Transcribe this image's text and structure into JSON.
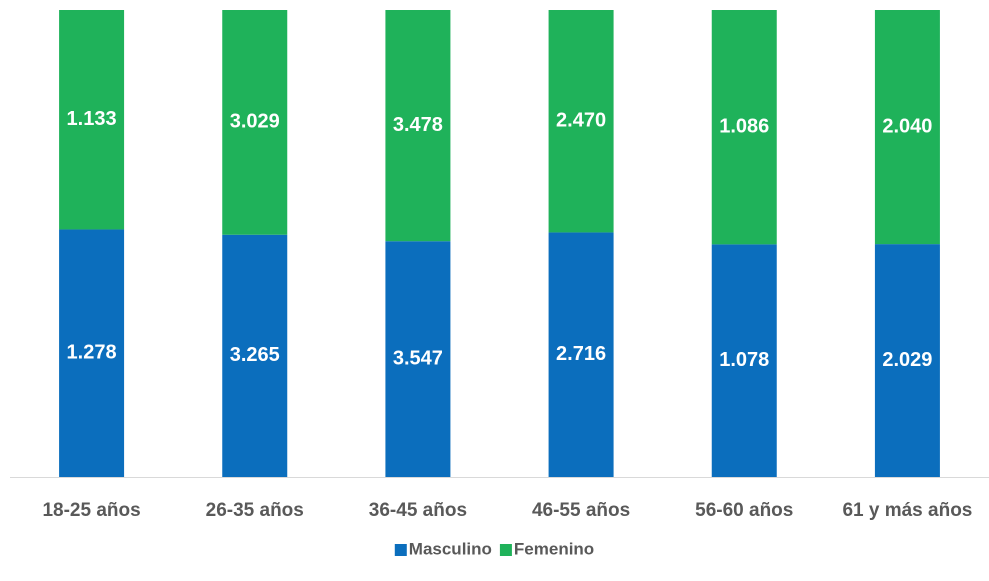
{
  "chart_data": {
    "type": "bar",
    "stacking": "percent",
    "categories": [
      "18-25 años",
      "26-35 años",
      "36-45 años",
      "46-55 años",
      "56-60 años",
      "61 y más años"
    ],
    "series": [
      {
        "name": "Masculino",
        "color": "#0b6ebd",
        "values": [
          1278,
          3265,
          3547,
          2716,
          1078,
          2029
        ],
        "value_labels": [
          "1.278",
          "3.265",
          "3.547",
          "2.716",
          "1.078",
          "2.029"
        ]
      },
      {
        "name": "Femenino",
        "color": "#1fb25a",
        "values": [
          1133,
          3029,
          3478,
          2470,
          1086,
          2040
        ],
        "value_labels": [
          "1.133",
          "3.029",
          "3.478",
          "2.470",
          "1.086",
          "2.040"
        ]
      }
    ],
    "legend": "bottom"
  }
}
